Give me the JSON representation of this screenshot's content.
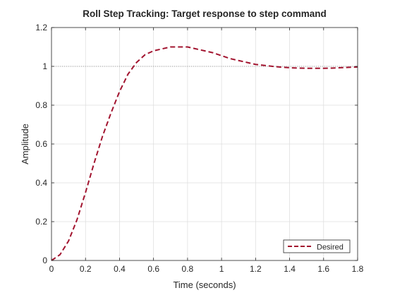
{
  "chart_data": {
    "type": "line",
    "title": "Roll Step Tracking: Target response to step command",
    "xlabel": "Time (seconds)",
    "ylabel": "Amplitude",
    "xlim": [
      0,
      1.8
    ],
    "ylim": [
      0,
      1.2
    ],
    "xticks": [
      0,
      0.2,
      0.4,
      0.6,
      0.8,
      1,
      1.2,
      1.4,
      1.6,
      1.8
    ],
    "yticks": [
      0,
      0.2,
      0.4,
      0.6,
      0.8,
      1,
      1.2
    ],
    "xtick_labels": [
      "0",
      "0.2",
      "0.4",
      "0.6",
      "0.8",
      "1",
      "1.2",
      "1.4",
      "1.6",
      "1.8"
    ],
    "ytick_labels": [
      "0",
      "0.2",
      "0.4",
      "0.6",
      "0.8",
      "1",
      "1.2"
    ],
    "grid": true,
    "legend_position": "bottom-right",
    "reference_line": {
      "y": 1,
      "style": "dotted",
      "color": "#8c8c8c"
    },
    "series": [
      {
        "name": "Desired",
        "color": "#a2142f",
        "style": "dashed",
        "x": [
          0,
          0.05,
          0.1,
          0.15,
          0.2,
          0.25,
          0.3,
          0.35,
          0.4,
          0.45,
          0.5,
          0.55,
          0.6,
          0.65,
          0.7,
          0.75,
          0.8,
          0.85,
          0.9,
          0.95,
          1.0,
          1.05,
          1.1,
          1.15,
          1.2,
          1.25,
          1.3,
          1.35,
          1.4,
          1.45,
          1.5,
          1.55,
          1.6,
          1.65,
          1.7,
          1.75,
          1.8
        ],
        "y": [
          0,
          0.03,
          0.1,
          0.21,
          0.35,
          0.5,
          0.64,
          0.76,
          0.87,
          0.96,
          1.02,
          1.06,
          1.08,
          1.09,
          1.1,
          1.1,
          1.1,
          1.09,
          1.08,
          1.07,
          1.055,
          1.04,
          1.03,
          1.02,
          1.01,
          1.005,
          1.0,
          0.996,
          0.993,
          0.991,
          0.99,
          0.99,
          0.99,
          0.991,
          0.993,
          0.995,
          0.997
        ]
      }
    ]
  }
}
